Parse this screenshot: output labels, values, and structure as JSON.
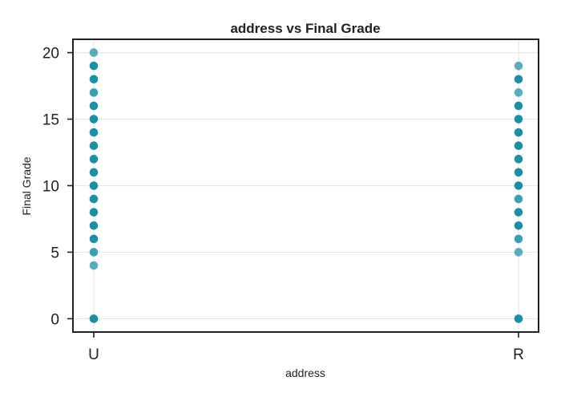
{
  "chart_data": {
    "type": "scatter",
    "title": "address vs Final Grade",
    "xlabel": "address",
    "ylabel": "Final Grade",
    "categories": [
      "U",
      "R"
    ],
    "yticks": [
      0,
      5,
      10,
      15,
      20
    ],
    "ylim": [
      -1,
      21
    ],
    "grid": true,
    "series": [
      {
        "points": [
          {
            "x": "U",
            "y": 20,
            "density": "low"
          },
          {
            "x": "U",
            "y": 19,
            "density": "high"
          },
          {
            "x": "U",
            "y": 18,
            "density": "high"
          },
          {
            "x": "U",
            "y": 17,
            "density": "medium"
          },
          {
            "x": "U",
            "y": 16,
            "density": "high"
          },
          {
            "x": "U",
            "y": 15,
            "density": "high"
          },
          {
            "x": "U",
            "y": 14,
            "density": "high"
          },
          {
            "x": "U",
            "y": 13,
            "density": "high"
          },
          {
            "x": "U",
            "y": 12,
            "density": "high"
          },
          {
            "x": "U",
            "y": 11,
            "density": "high"
          },
          {
            "x": "U",
            "y": 10,
            "density": "high"
          },
          {
            "x": "U",
            "y": 9,
            "density": "high"
          },
          {
            "x": "U",
            "y": 8,
            "density": "high"
          },
          {
            "x": "U",
            "y": 7,
            "density": "high"
          },
          {
            "x": "U",
            "y": 6,
            "density": "high"
          },
          {
            "x": "U",
            "y": 5,
            "density": "medium"
          },
          {
            "x": "U",
            "y": 4,
            "density": "low"
          },
          {
            "x": "U",
            "y": 0,
            "density": "high"
          },
          {
            "x": "R",
            "y": 19,
            "density": "low"
          },
          {
            "x": "R",
            "y": 18,
            "density": "high"
          },
          {
            "x": "R",
            "y": 17,
            "density": "low"
          },
          {
            "x": "R",
            "y": 16,
            "density": "high"
          },
          {
            "x": "R",
            "y": 15,
            "density": "high"
          },
          {
            "x": "R",
            "y": 14,
            "density": "high"
          },
          {
            "x": "R",
            "y": 13,
            "density": "high"
          },
          {
            "x": "R",
            "y": 12,
            "density": "high"
          },
          {
            "x": "R",
            "y": 11,
            "density": "high"
          },
          {
            "x": "R",
            "y": 10,
            "density": "high"
          },
          {
            "x": "R",
            "y": 9,
            "density": "medium"
          },
          {
            "x": "R",
            "y": 8,
            "density": "high"
          },
          {
            "x": "R",
            "y": 7,
            "density": "high"
          },
          {
            "x": "R",
            "y": 6,
            "density": "medium"
          },
          {
            "x": "R",
            "y": 5,
            "density": "low"
          },
          {
            "x": "R",
            "y": 0,
            "density": "high"
          }
        ]
      }
    ],
    "colors": {
      "point": "#1a8fa8",
      "frame": "#222222",
      "grid": "#e6e6e6",
      "text": "#222222"
    }
  }
}
